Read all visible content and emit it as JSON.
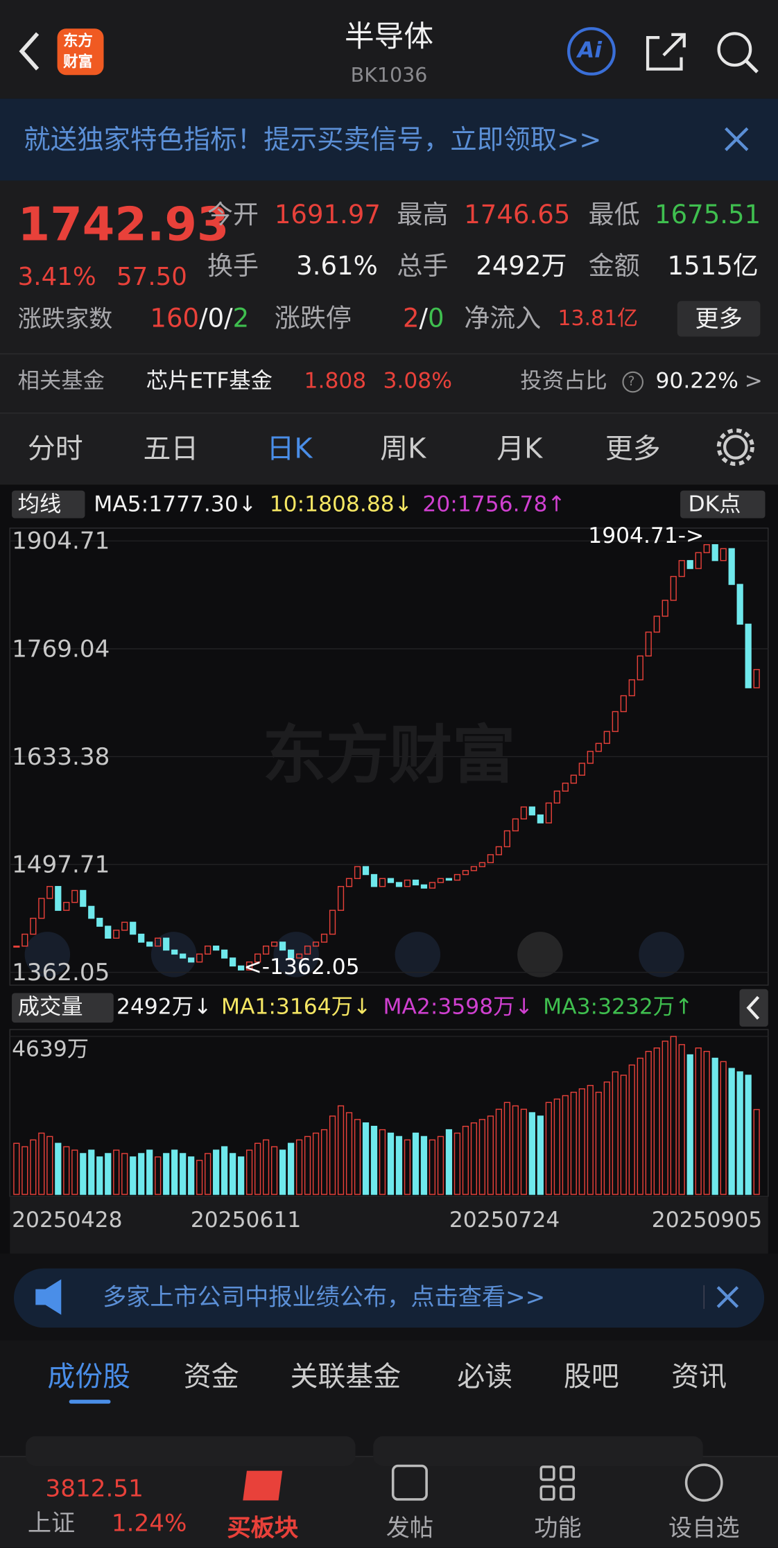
{
  "header": {
    "title": "半导体",
    "code": "BK1036",
    "logo": [
      "东方",
      "财富"
    ]
  },
  "banner": {
    "text": "就送独家特色指标！提示买卖信号，立即领取>>"
  },
  "quote": {
    "price": "1742.93",
    "change_pct": "3.41%",
    "change": "57.50",
    "stats": [
      {
        "label": "今开",
        "value": "1691.97"
      },
      {
        "label": "最高",
        "value": "1746.65"
      },
      {
        "label": "最低",
        "value": "1675.51"
      },
      {
        "label": "换手",
        "value": "3.61%"
      },
      {
        "label": "总手",
        "value": "2492万"
      },
      {
        "label": "金额",
        "value": "1515亿"
      }
    ],
    "breadth_label": "涨跌家数",
    "breadth": [
      "160",
      "/",
      "0",
      "/",
      "2"
    ],
    "limit_label": "涨跌停",
    "limit": [
      "2",
      "/",
      "0"
    ],
    "inflow_label": "净流入",
    "inflow": "13.81亿",
    "more": "更多"
  },
  "fund": {
    "label": "相关基金",
    "name": "芯片ETF基金",
    "price": "1.808",
    "pct": "3.08%",
    "ratio_label": "投资占比",
    "help": "?",
    "ratio": "90.22%",
    "arrow": ">"
  },
  "period_tabs": [
    "分时",
    "五日",
    "日K",
    "周K",
    "月K",
    "更多"
  ],
  "chart_data": {
    "type": "candlestick",
    "ma_label": "均线",
    "ma_legend": [
      "MA5:1777.30↓",
      "10:1808.88↓",
      "20:1756.78↑"
    ],
    "dk": "DK点",
    "watermark": "东方财富",
    "ylim": [
      1362.05,
      1904.71
    ],
    "yticks": [
      1904.71,
      1769.04,
      1633.38,
      1497.71,
      1362.05
    ],
    "max_label": "1904.71->",
    "min_label": "<-1362.05",
    "close": [
      1395,
      1410,
      1430,
      1455,
      1470,
      1440,
      1450,
      1465,
      1445,
      1430,
      1420,
      1405,
      1415,
      1425,
      1410,
      1400,
      1395,
      1405,
      1390,
      1385,
      1380,
      1375,
      1385,
      1395,
      1390,
      1380,
      1370,
      1365,
      1375,
      1385,
      1395,
      1400,
      1390,
      1380,
      1385,
      1395,
      1400,
      1410,
      1440,
      1470,
      1480,
      1495,
      1485,
      1470,
      1480,
      1475,
      1470,
      1478,
      1472,
      1468,
      1475,
      1480,
      1478,
      1485,
      1490,
      1495,
      1500,
      1510,
      1520,
      1540,
      1555,
      1570,
      1560,
      1550,
      1575,
      1590,
      1600,
      1610,
      1625,
      1640,
      1650,
      1665,
      1690,
      1710,
      1730,
      1760,
      1790,
      1810,
      1830,
      1860,
      1880,
      1870,
      1890,
      1900,
      1880,
      1895,
      1850,
      1800,
      1720,
      1742.93
    ],
    "volume_label": "成交量",
    "volume_legend": [
      "2492万↓",
      "MA1:3164万↓",
      "MA2:3598万↓",
      "MA3:3232万↑"
    ],
    "volume": [
      1500,
      1400,
      1600,
      1800,
      1700,
      1500,
      1400,
      1300,
      1200,
      1300,
      1100,
      1200,
      1300,
      1200,
      1100,
      1200,
      1300,
      1100,
      1200,
      1300,
      1200,
      1100,
      1000,
      1200,
      1300,
      1400,
      1200,
      1100,
      1300,
      1500,
      1600,
      1400,
      1300,
      1500,
      1600,
      1700,
      1800,
      1900,
      2300,
      2600,
      2400,
      2200,
      2100,
      2000,
      1900,
      1800,
      1700,
      1600,
      1800,
      1700,
      1600,
      1700,
      1900,
      1800,
      2000,
      2100,
      2200,
      2300,
      2500,
      2700,
      2600,
      2500,
      2400,
      2300,
      2700,
      2800,
      2900,
      3000,
      3100,
      3200,
      3000,
      3300,
      3600,
      3500,
      3800,
      4000,
      4200,
      4300,
      4500,
      4639,
      4400,
      4100,
      4300,
      4200,
      4000,
      3900,
      3700,
      3600,
      3500,
      2492
    ],
    "vlim": [
      0,
      4639
    ],
    "vticks": [
      {
        "value": 4639,
        "label": "4639万"
      }
    ],
    "date_labels": [
      "20250428",
      "20250611",
      "20250724",
      "20250905"
    ],
    "up_color": "#e8413a",
    "down_color": "#6fe8ec",
    "grid": true
  },
  "news_banner": "多家上市公司中报业绩公布，点击查看>>",
  "section_tabs": [
    "成份股",
    "资金",
    "关联基金",
    "必读",
    "股吧",
    "资讯"
  ],
  "bottom": {
    "index_value": "3812.51",
    "index_name": "上证",
    "index_pct": "1.24%",
    "nav": [
      "买板块",
      "发帖",
      "功能",
      "设自选"
    ]
  }
}
